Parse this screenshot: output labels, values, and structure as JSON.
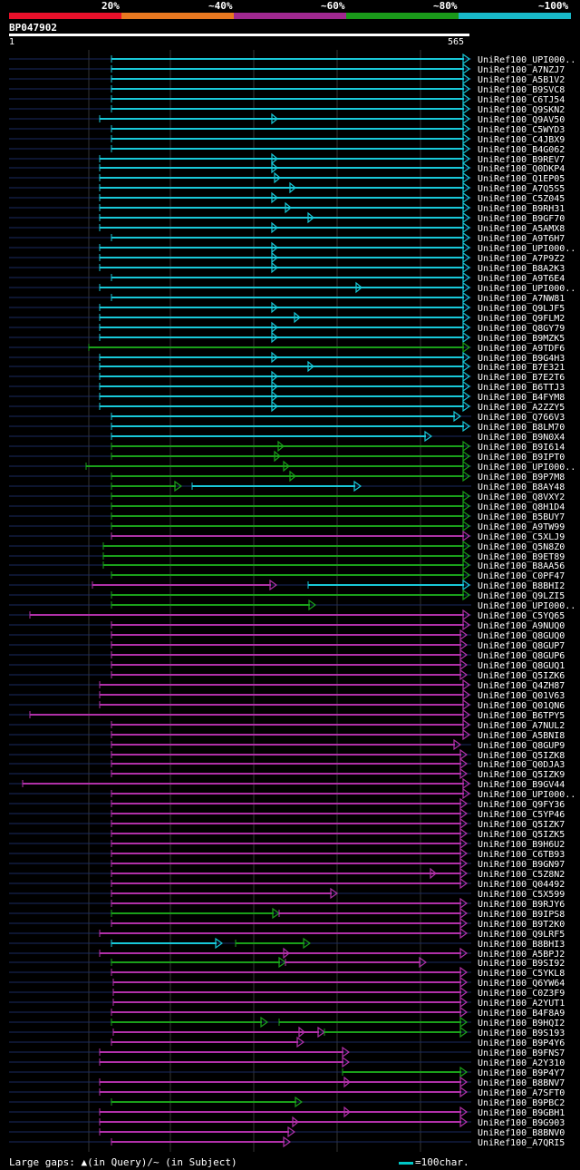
{
  "legend": {
    "labels": [
      "20%",
      "~40%",
      "~60%",
      "~80%",
      "~100%"
    ],
    "colors": [
      "#e8102a",
      "#e87820",
      "#a02890",
      "#1a9a1a",
      "#18b8c8"
    ]
  },
  "query": {
    "name": "BP047902",
    "start": "1",
    "end": "565"
  },
  "footer": {
    "gaps_text": "Large gaps: ▲(in Query)/~ (in Subject)",
    "scale_text": "=100char."
  },
  "hits": [
    {
      "name": "UniRef100_UPI000..",
      "c": "cyan",
      "s": 123,
      "e": 518,
      "ls": 10
    },
    {
      "name": "UniRef100_A7NZJ7",
      "c": "cyan",
      "s": 123,
      "e": 518,
      "ls": 10
    },
    {
      "name": "UniRef100_A5B1V2",
      "c": "cyan",
      "s": 123,
      "e": 518,
      "ls": 10
    },
    {
      "name": "UniRef100_B9SVC8",
      "c": "cyan",
      "s": 123,
      "e": 518,
      "ls": 10
    },
    {
      "name": "UniRef100_C6TJ54",
      "c": "cyan",
      "s": 123,
      "e": 518,
      "ls": 10
    },
    {
      "name": "UniRef100_Q9SKN2",
      "c": "cyan",
      "s": 123,
      "e": 518,
      "ls": 10
    },
    {
      "name": "UniRef100_Q9AV50",
      "c": "cyan",
      "s": 110,
      "e": 518,
      "ls": 10,
      "m": [
        305
      ]
    },
    {
      "name": "UniRef100_C5WYD3",
      "c": "cyan",
      "s": 123,
      "e": 518,
      "ls": 10
    },
    {
      "name": "UniRef100_C4JBX9",
      "c": "cyan",
      "s": 123,
      "e": 518,
      "ls": 10
    },
    {
      "name": "UniRef100_B4G062",
      "c": "cyan",
      "s": 123,
      "e": 518,
      "ls": 10
    },
    {
      "name": "UniRef100_B9REV7",
      "c": "cyan",
      "s": 110,
      "e": 518,
      "ls": 10,
      "m": [
        305
      ]
    },
    {
      "name": "UniRef100_Q0DKP4",
      "c": "cyan",
      "s": 110,
      "e": 518,
      "ls": 10,
      "m": [
        305
      ]
    },
    {
      "name": "UniRef100_Q1EP05",
      "c": "cyan",
      "s": 110,
      "e": 518,
      "ls": 10,
      "m": [
        308
      ]
    },
    {
      "name": "UniRef100_A7Q5S5",
      "c": "cyan",
      "s": 110,
      "e": 518,
      "ls": 10,
      "m": [
        325
      ]
    },
    {
      "name": "UniRef100_C5Z045",
      "c": "cyan",
      "s": 110,
      "e": 518,
      "ls": 10,
      "m": [
        305
      ]
    },
    {
      "name": "UniRef100_B9RH31",
      "c": "cyan",
      "s": 110,
      "e": 518,
      "ls": 10,
      "m": [
        320
      ]
    },
    {
      "name": "UniRef100_B9GF70",
      "c": "cyan",
      "s": 110,
      "e": 518,
      "ls": 10,
      "m": [
        345
      ]
    },
    {
      "name": "UniRef100_A5AMX8",
      "c": "cyan",
      "s": 110,
      "e": 518,
      "ls": 10,
      "m": [
        305
      ]
    },
    {
      "name": "UniRef100_A9T6H7",
      "c": "cyan",
      "s": 123,
      "e": 518,
      "ls": 10
    },
    {
      "name": "UniRef100_UPI000..",
      "c": "cyan",
      "s": 110,
      "e": 518,
      "ls": 10,
      "m": [
        305
      ]
    },
    {
      "name": "UniRef100_A7P9Z2",
      "c": "cyan",
      "s": 110,
      "e": 518,
      "ls": 10,
      "m": [
        305
      ]
    },
    {
      "name": "UniRef100_B8A2K3",
      "c": "cyan",
      "s": 110,
      "e": 518,
      "ls": 10,
      "m": [
        305
      ]
    },
    {
      "name": "UniRef100_A9T6E4",
      "c": "cyan",
      "s": 123,
      "e": 518,
      "ls": 10
    },
    {
      "name": "UniRef100_UPI000..",
      "c": "cyan",
      "s": 110,
      "e": 518,
      "ls": 10,
      "m": [
        398
      ]
    },
    {
      "name": "UniRef100_A7NW81",
      "c": "cyan",
      "s": 123,
      "e": 518,
      "ls": 10
    },
    {
      "name": "UniRef100_Q9LJF5",
      "c": "cyan",
      "s": 110,
      "e": 518,
      "ls": 10,
      "m": [
        305
      ]
    },
    {
      "name": "UniRef100_Q9FLM2",
      "c": "cyan",
      "s": 110,
      "e": 518,
      "ls": 10,
      "m": [
        330
      ]
    },
    {
      "name": "UniRef100_Q8GY79",
      "c": "cyan",
      "s": 110,
      "e": 518,
      "ls": 10,
      "m": [
        305
      ]
    },
    {
      "name": "UniRef100_B9MZK5",
      "c": "cyan",
      "s": 110,
      "e": 518,
      "ls": 10,
      "m": [
        305
      ]
    },
    {
      "name": "UniRef100_A9TDF6",
      "c": "green",
      "s": 98,
      "e": 518,
      "ls": 10
    },
    {
      "name": "UniRef100_B9G4H3",
      "c": "cyan",
      "s": 110,
      "e": 518,
      "ls": 10,
      "m": [
        305
      ]
    },
    {
      "name": "UniRef100_B7E321",
      "c": "cyan",
      "s": 110,
      "e": 518,
      "ls": 10,
      "m": [
        345
      ]
    },
    {
      "name": "UniRef100_B7E2T6",
      "c": "cyan",
      "s": 110,
      "e": 518,
      "ls": 10,
      "m": [
        305
      ]
    },
    {
      "name": "UniRef100_B6TTJ3",
      "c": "cyan",
      "s": 110,
      "e": 518,
      "ls": 10,
      "m": [
        305
      ]
    },
    {
      "name": "UniRef100_B4FYM8",
      "c": "cyan",
      "s": 110,
      "e": 518,
      "ls": 10,
      "m": [
        305
      ]
    },
    {
      "name": "UniRef100_A2ZZY5",
      "c": "cyan",
      "s": 110,
      "e": 518,
      "ls": 10,
      "m": [
        305
      ]
    },
    {
      "name": "UniRef100_Q766V3",
      "c": "cyan",
      "s": 123,
      "e": 508,
      "ls": 10
    },
    {
      "name": "UniRef100_B8LM70",
      "c": "cyan",
      "s": 123,
      "e": 518,
      "ls": 10
    },
    {
      "name": "UniRef100_B9N0X4",
      "c": "cyan",
      "s": 123,
      "e": 476,
      "ls": 10
    },
    {
      "name": "UniRef100_B9I614",
      "c": "green",
      "s": 123,
      "e": 518,
      "ls": 10,
      "m": [
        312
      ]
    },
    {
      "name": "UniRef100_B9IPT0",
      "c": "green",
      "s": 123,
      "e": 518,
      "ls": 10,
      "m": [
        308
      ]
    },
    {
      "name": "UniRef100_UPI000..",
      "c": "green",
      "s": 95,
      "e": 518,
      "ls": 10,
      "m": [
        318
      ]
    },
    {
      "name": "UniRef100_B9P7M8",
      "c": "green",
      "s": 123,
      "e": 518,
      "ls": 10,
      "m": [
        325
      ]
    },
    {
      "name": "UniRef100_B8AY48",
      "c": "green",
      "s": 123,
      "e": 200,
      "ls": 10,
      "c2": "cyan",
      "s2": 212,
      "e2": 398
    },
    {
      "name": "UniRef100_Q8VXY2",
      "c": "green",
      "s": 123,
      "e": 518,
      "ls": 10
    },
    {
      "name": "UniRef100_Q8H1D4",
      "c": "green",
      "s": 123,
      "e": 518,
      "ls": 10
    },
    {
      "name": "UniRef100_B5BUY7",
      "c": "green",
      "s": 123,
      "e": 518,
      "ls": 10
    },
    {
      "name": "UniRef100_A9TW99",
      "c": "green",
      "s": 123,
      "e": 518,
      "ls": 10
    },
    {
      "name": "UniRef100_C5XLJ9",
      "c": "magenta",
      "s": 123,
      "e": 518,
      "ls": 10
    },
    {
      "name": "UniRef100_Q5N8Z0",
      "c": "green",
      "s": 114,
      "e": 518,
      "ls": 10
    },
    {
      "name": "UniRef100_B9ET89",
      "c": "green",
      "s": 114,
      "e": 518,
      "ls": 10
    },
    {
      "name": "UniRef100_B8AA56",
      "c": "green",
      "s": 114,
      "e": 518,
      "ls": 10
    },
    {
      "name": "UniRef100_C0PF47",
      "c": "green",
      "s": 123,
      "e": 518,
      "ls": 10
    },
    {
      "name": "UniRef100_B8BHI2",
      "c": "magenta",
      "s": 102,
      "e": 305,
      "ls": 10,
      "c2": "cyan",
      "s2": 340,
      "e2": 518
    },
    {
      "name": "UniRef100_Q9LZI5",
      "c": "green",
      "s": 123,
      "e": 518,
      "ls": 10
    },
    {
      "name": "UniRef100_UPI000..",
      "c": "green",
      "s": 123,
      "e": 348,
      "ls": 10
    },
    {
      "name": "UniRef100_C5YQ65",
      "c": "magenta",
      "s": 33,
      "e": 518,
      "ls": 10
    },
    {
      "name": "UniRef100_A9NUQ0",
      "c": "magenta",
      "s": 123,
      "e": 518,
      "ls": 10
    },
    {
      "name": "UniRef100_Q8GUQ0",
      "c": "magenta",
      "s": 123,
      "e": 515,
      "ls": 10
    },
    {
      "name": "UniRef100_Q8GUP7",
      "c": "magenta",
      "s": 123,
      "e": 515,
      "ls": 10
    },
    {
      "name": "UniRef100_Q8GUP6",
      "c": "magenta",
      "s": 123,
      "e": 515,
      "ls": 10
    },
    {
      "name": "UniRef100_Q8GUQ1",
      "c": "magenta",
      "s": 123,
      "e": 515,
      "ls": 10
    },
    {
      "name": "UniRef100_Q5IZK6",
      "c": "magenta",
      "s": 123,
      "e": 515,
      "ls": 10
    },
    {
      "name": "UniRef100_Q4ZH87",
      "c": "magenta",
      "s": 110,
      "e": 518,
      "ls": 10
    },
    {
      "name": "UniRef100_Q01V63",
      "c": "magenta",
      "s": 110,
      "e": 518,
      "ls": 10
    },
    {
      "name": "UniRef100_Q01QN6",
      "c": "magenta",
      "s": 110,
      "e": 518,
      "ls": 10
    },
    {
      "name": "UniRef100_B6TPY5",
      "c": "magenta",
      "s": 33,
      "e": 518,
      "ls": 10
    },
    {
      "name": "UniRef100_A7NUL2",
      "c": "magenta",
      "s": 123,
      "e": 518,
      "ls": 10
    },
    {
      "name": "UniRef100_A5BNI8",
      "c": "magenta",
      "s": 123,
      "e": 518,
      "ls": 10
    },
    {
      "name": "UniRef100_Q8GUP9",
      "c": "magenta",
      "s": 123,
      "e": 508,
      "ls": 10
    },
    {
      "name": "UniRef100_Q5IZK8",
      "c": "magenta",
      "s": 123,
      "e": 515,
      "ls": 10
    },
    {
      "name": "UniRef100_Q0DJA3",
      "c": "magenta",
      "s": 123,
      "e": 515,
      "ls": 10
    },
    {
      "name": "UniRef100_Q5IZK9",
      "c": "magenta",
      "s": 123,
      "e": 515,
      "ls": 10
    },
    {
      "name": "UniRef100_B9GV44",
      "c": "magenta",
      "s": 25,
      "e": 518,
      "ls": 10
    },
    {
      "name": "UniRef100_UPI000..",
      "c": "magenta",
      "s": 123,
      "e": 518,
      "ls": 10
    },
    {
      "name": "UniRef100_Q9FY36",
      "c": "magenta",
      "s": 123,
      "e": 515,
      "ls": 10
    },
    {
      "name": "UniRef100_C5YP46",
      "c": "magenta",
      "s": 123,
      "e": 515,
      "ls": 10
    },
    {
      "name": "UniRef100_Q5IZK7",
      "c": "magenta",
      "s": 123,
      "e": 515,
      "ls": 10
    },
    {
      "name": "UniRef100_Q5IZK5",
      "c": "magenta",
      "s": 123,
      "e": 515,
      "ls": 10
    },
    {
      "name": "UniRef100_B9H6U2",
      "c": "magenta",
      "s": 123,
      "e": 515,
      "ls": 10
    },
    {
      "name": "UniRef100_C6TB93",
      "c": "magenta",
      "s": 123,
      "e": 515,
      "ls": 10
    },
    {
      "name": "UniRef100_B9GN97",
      "c": "magenta",
      "s": 123,
      "e": 515,
      "ls": 10
    },
    {
      "name": "UniRef100_C5Z8N2",
      "c": "magenta",
      "s": 123,
      "e": 515,
      "ls": 10,
      "m": [
        480
      ]
    },
    {
      "name": "UniRef100_Q04492",
      "c": "magenta",
      "s": 123,
      "e": 515,
      "ls": 10
    },
    {
      "name": "UniRef100_C5X599",
      "c": "magenta",
      "s": 123,
      "e": 372,
      "ls": 10
    },
    {
      "name": "UniRef100_B9RJY6",
      "c": "magenta",
      "s": 123,
      "e": 515,
      "ls": 10
    },
    {
      "name": "UniRef100_B9IPS8",
      "c": "green",
      "s": 123,
      "e": 308,
      "ls": 10,
      "c2": "magenta",
      "s2": 308,
      "e2": 515
    },
    {
      "name": "UniRef100_B9T2K0",
      "c": "magenta",
      "s": 123,
      "e": 515,
      "ls": 10
    },
    {
      "name": "UniRef100_Q9LRF5",
      "c": "magenta",
      "s": 110,
      "e": 515,
      "ls": 10
    },
    {
      "name": "UniRef100_B8BHI3",
      "c": "cyan",
      "s": 123,
      "e": 245,
      "ls": 10,
      "c2": "green",
      "s2": 260,
      "e2": 342
    },
    {
      "name": "UniRef100_A5BPJ2",
      "c": "magenta",
      "s": 110,
      "e": 515,
      "ls": 10,
      "m": [
        318
      ]
    },
    {
      "name": "UniRef100_B9SI92",
      "c": "green",
      "s": 123,
      "e": 315,
      "ls": 10,
      "c2": "magenta",
      "s2": 315,
      "e2": 470
    },
    {
      "name": "UniRef100_C5YKL8",
      "c": "magenta",
      "s": 123,
      "e": 515,
      "ls": 10
    },
    {
      "name": "UniRef100_Q6YW64",
      "c": "magenta",
      "s": 125,
      "e": 515,
      "ls": 10
    },
    {
      "name": "UniRef100_C0Z3F9",
      "c": "magenta",
      "s": 125,
      "e": 515,
      "ls": 10
    },
    {
      "name": "UniRef100_A2YUT1",
      "c": "magenta",
      "s": 125,
      "e": 515,
      "ls": 10
    },
    {
      "name": "UniRef100_B4F8A9",
      "c": "magenta",
      "s": 123,
      "e": 515,
      "ls": 10
    },
    {
      "name": "UniRef100_B9HQI2",
      "c": "green",
      "s": 123,
      "e": 295,
      "ls": 10,
      "c2": "green",
      "s2": 308,
      "e2": 515
    },
    {
      "name": "UniRef100_B9S193",
      "c": "magenta",
      "s": 125,
      "e": 358,
      "ls": 10,
      "c2": "green",
      "s2": 358,
      "e2": 515,
      "m": [
        335
      ]
    },
    {
      "name": "UniRef100_B9P4Y6",
      "c": "magenta",
      "s": 123,
      "e": 335,
      "ls": 10
    },
    {
      "name": "UniRef100_B9FNS7",
      "c": "magenta",
      "s": 110,
      "e": 385,
      "ls": 10
    },
    {
      "name": "UniRef100_A2Y310",
      "c": "magenta",
      "s": 110,
      "e": 385,
      "ls": 10
    },
    {
      "name": "UniRef100_B9P4Y7",
      "c": "green",
      "s": 378,
      "e": 515,
      "ls": 10
    },
    {
      "name": "UniRef100_B8BNV7",
      "c": "magenta",
      "s": 110,
      "e": 515,
      "ls": 10,
      "m": [
        385
      ]
    },
    {
      "name": "UniRef100_A7SFT0",
      "c": "magenta",
      "s": 110,
      "e": 515,
      "ls": 10
    },
    {
      "name": "UniRef100_B9PBC2",
      "c": "green",
      "s": 123,
      "e": 333,
      "ls": 10
    },
    {
      "name": "UniRef100_B9GBH1",
      "c": "magenta",
      "s": 110,
      "e": 515,
      "ls": 10,
      "m": [
        385
      ]
    },
    {
      "name": "UniRef100_B9G903",
      "c": "magenta",
      "s": 110,
      "e": 515,
      "ls": 10,
      "m": [
        328
      ]
    },
    {
      "name": "UniRef100_B8BNV0",
      "c": "magenta",
      "s": 110,
      "e": 325,
      "ls": 10
    },
    {
      "name": "UniRef100_A7QRI5",
      "c": "magenta",
      "s": 123,
      "e": 320,
      "ls": 10
    }
  ]
}
